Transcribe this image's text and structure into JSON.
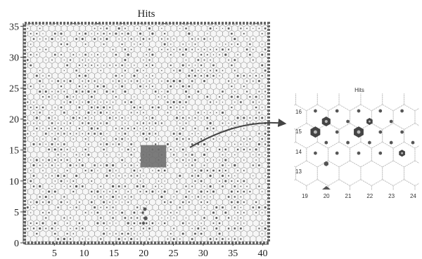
{
  "main_map": {
    "title": "Hits",
    "x_ticks": [
      "5",
      "10",
      "15",
      "20",
      "25",
      "30",
      "35",
      "40"
    ],
    "y_ticks": [
      "0",
      "5",
      "10",
      "15",
      "20",
      "25",
      "30",
      "35"
    ],
    "x_range": [
      0,
      41
    ],
    "y_range": [
      0,
      35.5
    ],
    "cluster_square": {
      "x": [
        19.5,
        23.8
      ],
      "y": [
        12.2,
        15.8
      ]
    },
    "color_hex_outline": "#9a9a9a",
    "color_hit": "#555555",
    "color_border": "#666666"
  },
  "zoom": {
    "title": "Hits",
    "x_ticks": [
      "19",
      "20",
      "21",
      "22",
      "23",
      "24"
    ],
    "y_ticks": [
      "16",
      "15",
      "14",
      "13"
    ],
    "hits": [
      {
        "col": 19.5,
        "row": 16.3,
        "size": 2
      },
      {
        "col": 20.5,
        "row": 16.3,
        "size": 2
      },
      {
        "col": 21.5,
        "row": 16.3,
        "size": 2
      },
      {
        "col": 22.5,
        "row": 16.3,
        "size": 2
      },
      {
        "col": 23.5,
        "row": 16.3,
        "size": 2
      },
      {
        "col": 20,
        "row": 15.6,
        "size": 6
      },
      {
        "col": 21,
        "row": 15.6,
        "size": 2
      },
      {
        "col": 22,
        "row": 15.6,
        "size": 4
      },
      {
        "col": 23,
        "row": 15.6,
        "size": 2
      },
      {
        "col": 19.5,
        "row": 14.9,
        "size": 7
      },
      {
        "col": 20.5,
        "row": 14.9,
        "size": 2
      },
      {
        "col": 21.5,
        "row": 14.9,
        "size": 7
      },
      {
        "col": 22.5,
        "row": 14.9,
        "size": 2
      },
      {
        "col": 23.5,
        "row": 14.9,
        "size": 2
      },
      {
        "col": 20,
        "row": 14.2,
        "size": 2
      },
      {
        "col": 21,
        "row": 14.2,
        "size": 2
      },
      {
        "col": 22,
        "row": 14.2,
        "size": 2
      },
      {
        "col": 23,
        "row": 14.2,
        "size": 2
      },
      {
        "col": 24,
        "row": 14.2,
        "size": 2
      },
      {
        "col": 19.5,
        "row": 13.5,
        "size": 2
      },
      {
        "col": 20.5,
        "row": 13.5,
        "size": 2
      },
      {
        "col": 21.5,
        "row": 13.5,
        "size": 2
      },
      {
        "col": 22.5,
        "row": 13.5,
        "size": 2
      },
      {
        "col": 23.5,
        "row": 13.5,
        "size": 4
      },
      {
        "col": 20,
        "row": 12.8,
        "size": 3
      }
    ],
    "color_hex_outline": "#bdbdbd",
    "color_hit": "#555555"
  }
}
